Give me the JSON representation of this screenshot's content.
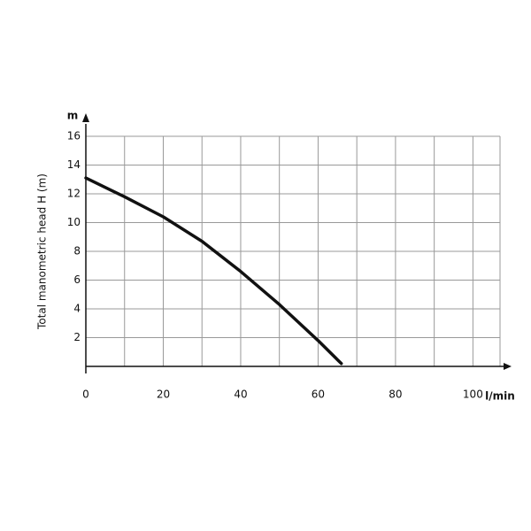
{
  "chart_data": {
    "type": "line",
    "ylabel": "Total manometric head H (m)",
    "yunit": "m",
    "xunit": "l/min",
    "x": [
      0,
      10,
      20,
      30,
      40,
      50,
      60,
      66
    ],
    "values": [
      13.1,
      11.8,
      10.4,
      8.7,
      6.6,
      4.3,
      1.8,
      0.2
    ],
    "color": "#111111",
    "xlim": [
      0,
      107
    ],
    "xticks": [
      0,
      20,
      40,
      60,
      80,
      100
    ],
    "xminor": [
      10,
      30,
      50,
      70,
      90
    ],
    "ylim": [
      0,
      16
    ],
    "yticks": [
      2,
      4,
      6,
      8,
      10,
      12,
      14,
      16
    ],
    "grid": true
  }
}
